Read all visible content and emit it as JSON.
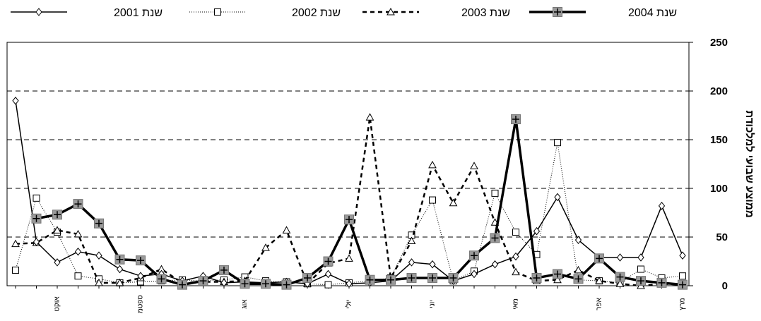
{
  "chart_data": {
    "type": "line",
    "ylabel": "ממוצע שבועי למלכודת",
    "ylim": [
      0,
      250
    ],
    "yticks": [
      0,
      50,
      100,
      150,
      200,
      250
    ],
    "grid": true,
    "legend_position": "top",
    "x_count": 33,
    "x_tick_labels": [
      {
        "index": 2,
        "label": "אוקט"
      },
      {
        "index": 6,
        "label": "ספטמ"
      },
      {
        "index": 11,
        "label": "אוג"
      },
      {
        "index": 16,
        "label": "יולי"
      },
      {
        "index": 20,
        "label": "יוני"
      },
      {
        "index": 24,
        "label": "מאי"
      },
      {
        "index": 28,
        "label": "אפר"
      },
      {
        "index": 32,
        "label": "מרץ"
      }
    ],
    "series": [
      {
        "name": "שנת 2001",
        "marker": "diamond",
        "line": "solid-thin",
        "values": [
          190,
          45,
          24,
          35,
          31,
          17,
          10,
          12,
          5,
          10,
          3,
          4,
          3,
          4,
          2,
          12,
          2,
          3,
          5,
          24,
          22,
          5,
          12,
          22,
          30,
          56,
          91,
          47,
          29,
          29,
          29,
          82,
          31
        ]
      },
      {
        "name": "שנת 2002",
        "marker": "square",
        "line": "dotted-thin",
        "values": [
          16,
          90,
          55,
          10,
          7,
          3,
          4,
          5,
          6,
          5,
          6,
          9,
          5,
          4,
          2,
          1,
          3,
          5,
          8,
          52,
          88,
          5,
          15,
          95,
          55,
          32,
          147,
          6,
          5,
          3,
          17,
          8,
          10
        ]
      },
      {
        "name": "שנת 2003",
        "marker": "triangle",
        "line": "dashed",
        "values": [
          43,
          44,
          57,
          53,
          3,
          3,
          8,
          17,
          3,
          4,
          4,
          5,
          39,
          57,
          2,
          23,
          28,
          173,
          8,
          46,
          124,
          85,
          123,
          65,
          14,
          5,
          6,
          16,
          5,
          2,
          0,
          2,
          1
        ]
      },
      {
        "name": "שנת 2004",
        "marker": "plus-square",
        "line": "solid-thick",
        "values": [
          null,
          69,
          73,
          84,
          64,
          27,
          26,
          7,
          1,
          5,
          16,
          2,
          2,
          1,
          8,
          25,
          68,
          6,
          6,
          8,
          8,
          8,
          31,
          49,
          171,
          8,
          12,
          7,
          28,
          9,
          5,
          3,
          1
        ]
      }
    ]
  }
}
